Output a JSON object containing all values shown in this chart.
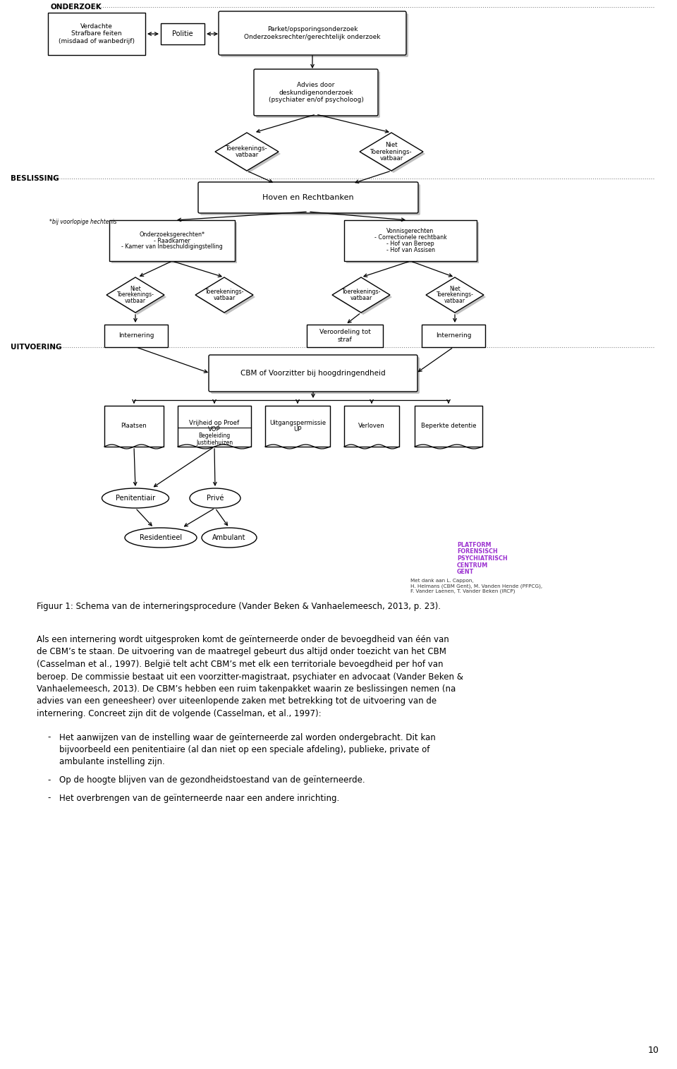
{
  "figure_caption": "Figuur 1: Schema van de interneringsprocedure (Vander Beken & Vanhaelemeesch, 2013, p. 23).",
  "paragraph1_lines": [
    "Als een internering wordt uitgesproken komt de geïnterneerde onder de bevoegdheid van één van",
    "de CBM’s te staan. De uitvoering van de maatregel gebeurt dus altijd onder toezicht van het CBM",
    "(Casselman et al., 1997). België telt acht CBM’s met elk een territoriale bevoegdheid per hof van",
    "beroep. De commissie bestaat uit een voorzitter-magistraat, psychiater en advocaat (Vander Beken &",
    "Vanhaelemeesch, 2013). De CBM’s hebben een ruim takenpakket waarin ze beslissingen nemen (na",
    "advies van een geneesheer) over uiteenlopende zaken met betrekking tot de uitvoering van de",
    "internering. Concreet zijn dit de volgende (Casselman, et al., 1997):"
  ],
  "bullet1_lines": [
    "Het aanwijzen van de instelling waar de geïnterneerde zal worden ondergebracht. Dit kan",
    "bijvoorbeeld een penitentiaire (al dan niet op een speciale afdeling), publieke, private of",
    "ambulante instelling zijn."
  ],
  "bullet2": "Op de hoogte blijven van de gezondheidstoestand van de geïnterneerde.",
  "bullet3": "Het overbrengen van de geïnterneerde naar een andere inrichting.",
  "page_number": "10",
  "onderzoek_label": "ONDERZOEK",
  "beslissing_label": "BESLISSING",
  "uitvoering_label": "UITVOERING",
  "footnote": "*bij voorlopige hechtenis",
  "logo_lines": [
    "PLATFORM",
    "FORENSISCH",
    "PSYCHIATRISCH",
    "CENTRUM",
    "GENT"
  ],
  "attribution": "Met dank aan L. Cappon,\nH. Helmans (CBM Gent), M. Vanden Hende (PFPCG),\nF. Vander Laenen, T. Vander Beken (IRCP)",
  "background_color": "#ffffff",
  "text_color": "#000000",
  "shadow_color": "#c0c0c0",
  "logo_color": "#9b30d0",
  "dotted_color": "#888888"
}
